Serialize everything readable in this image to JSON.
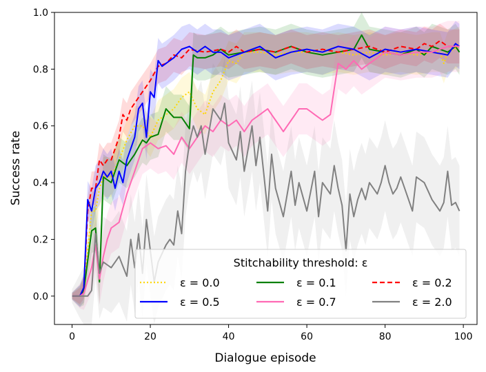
{
  "chart_data": {
    "type": "line",
    "title": "",
    "xlabel": "Dialogue episode",
    "ylabel": "Success rate",
    "xlim": [
      -4.5,
      103.5
    ],
    "ylim": [
      -0.1,
      1.0
    ],
    "xticks": [
      0,
      20,
      40,
      60,
      80,
      100
    ],
    "xtick_labels": [
      "0",
      "20",
      "40",
      "60",
      "80",
      "100"
    ],
    "yticks": [
      0.0,
      0.2,
      0.4,
      0.6,
      0.8,
      1.0
    ],
    "ytick_labels": [
      "0.0",
      "0.2",
      "0.4",
      "0.6",
      "0.8",
      "1.0"
    ],
    "legend_title": "Stitchability threshold: ε",
    "legend_position": "bottom-right",
    "series": [
      {
        "name": "ε = 0.0",
        "color": "#FFD700",
        "dash": "dotted",
        "knots": [
          [
            0,
            0
          ],
          [
            2,
            0
          ],
          [
            3,
            0.02
          ],
          [
            5,
            0.3
          ],
          [
            6,
            0.3
          ],
          [
            7,
            0.38
          ],
          [
            8,
            0.42
          ],
          [
            10,
            0.42
          ],
          [
            12,
            0.48
          ],
          [
            14,
            0.55
          ],
          [
            16,
            0.6
          ],
          [
            18,
            0.6
          ],
          [
            20,
            0.56
          ],
          [
            22,
            0.62
          ],
          [
            24,
            0.64
          ],
          [
            26,
            0.66
          ],
          [
            28,
            0.7
          ],
          [
            30,
            0.72
          ],
          [
            32,
            0.66
          ],
          [
            34,
            0.64
          ],
          [
            36,
            0.72
          ],
          [
            38,
            0.76
          ],
          [
            40,
            0.83
          ],
          [
            42,
            0.82
          ],
          [
            44,
            0.86
          ],
          [
            48,
            0.86
          ],
          [
            52,
            0.85
          ],
          [
            56,
            0.86
          ],
          [
            60,
            0.86
          ],
          [
            64,
            0.85
          ],
          [
            68,
            0.86
          ],
          [
            72,
            0.85
          ],
          [
            76,
            0.86
          ],
          [
            80,
            0.85
          ],
          [
            84,
            0.86
          ],
          [
            88,
            0.85
          ],
          [
            92,
            0.86
          ],
          [
            94,
            0.86
          ],
          [
            95,
            0.82
          ],
          [
            96,
            0.86
          ],
          [
            99,
            0.88
          ]
        ],
        "band": 0.07
      },
      {
        "name": "ε = 0.1",
        "color": "#008000",
        "dash": "solid",
        "knots": [
          [
            0,
            0
          ],
          [
            2,
            0
          ],
          [
            3,
            0.02
          ],
          [
            5,
            0.23
          ],
          [
            6,
            0.24
          ],
          [
            7,
            0.05
          ],
          [
            8,
            0.42
          ],
          [
            9,
            0.41
          ],
          [
            10,
            0.4
          ],
          [
            12,
            0.48
          ],
          [
            14,
            0.46
          ],
          [
            16,
            0.5
          ],
          [
            18,
            0.55
          ],
          [
            19,
            0.54
          ],
          [
            20,
            0.56
          ],
          [
            22,
            0.57
          ],
          [
            24,
            0.66
          ],
          [
            26,
            0.63
          ],
          [
            28,
            0.63
          ],
          [
            30,
            0.59
          ],
          [
            31,
            0.85
          ],
          [
            32,
            0.84
          ],
          [
            34,
            0.84
          ],
          [
            36,
            0.85
          ],
          [
            38,
            0.87
          ],
          [
            40,
            0.85
          ],
          [
            44,
            0.86
          ],
          [
            48,
            0.87
          ],
          [
            52,
            0.86
          ],
          [
            56,
            0.88
          ],
          [
            60,
            0.86
          ],
          [
            64,
            0.85
          ],
          [
            68,
            0.86
          ],
          [
            72,
            0.87
          ],
          [
            74,
            0.92
          ],
          [
            76,
            0.87
          ],
          [
            80,
            0.86
          ],
          [
            84,
            0.85
          ],
          [
            88,
            0.87
          ],
          [
            90,
            0.85
          ],
          [
            92,
            0.88
          ],
          [
            94,
            0.87
          ],
          [
            96,
            0.86
          ],
          [
            98,
            0.88
          ],
          [
            99,
            0.86
          ]
        ],
        "band": 0.08
      },
      {
        "name": "ε = 0.2",
        "color": "#FF0000",
        "dash": "dashed",
        "knots": [
          [
            0,
            0
          ],
          [
            2,
            0
          ],
          [
            3,
            0.03
          ],
          [
            4,
            0.3
          ],
          [
            5,
            0.38
          ],
          [
            6,
            0.38
          ],
          [
            7,
            0.48
          ],
          [
            8,
            0.46
          ],
          [
            9,
            0.48
          ],
          [
            10,
            0.48
          ],
          [
            12,
            0.56
          ],
          [
            13,
            0.64
          ],
          [
            14,
            0.62
          ],
          [
            15,
            0.66
          ],
          [
            16,
            0.68
          ],
          [
            18,
            0.72
          ],
          [
            20,
            0.76
          ],
          [
            22,
            0.81
          ],
          [
            24,
            0.82
          ],
          [
            26,
            0.85
          ],
          [
            28,
            0.84
          ],
          [
            30,
            0.87
          ],
          [
            34,
            0.86
          ],
          [
            38,
            0.87
          ],
          [
            40,
            0.86
          ],
          [
            42,
            0.88
          ],
          [
            44,
            0.86
          ],
          [
            48,
            0.87
          ],
          [
            52,
            0.86
          ],
          [
            56,
            0.88
          ],
          [
            60,
            0.86
          ],
          [
            64,
            0.87
          ],
          [
            68,
            0.86
          ],
          [
            72,
            0.87
          ],
          [
            76,
            0.88
          ],
          [
            80,
            0.86
          ],
          [
            84,
            0.88
          ],
          [
            88,
            0.87
          ],
          [
            90,
            0.89
          ],
          [
            92,
            0.88
          ],
          [
            94,
            0.9
          ],
          [
            96,
            0.88
          ],
          [
            99,
            0.88
          ]
        ],
        "band": 0.06
      },
      {
        "name": "ε = 0.5",
        "color": "#0000FF",
        "dash": "solid",
        "knots": [
          [
            0,
            0
          ],
          [
            2,
            0
          ],
          [
            3,
            0.03
          ],
          [
            4,
            0.34
          ],
          [
            5,
            0.3
          ],
          [
            6,
            0.38
          ],
          [
            7,
            0.4
          ],
          [
            8,
            0.44
          ],
          [
            9,
            0.42
          ],
          [
            10,
            0.44
          ],
          [
            11,
            0.38
          ],
          [
            12,
            0.44
          ],
          [
            13,
            0.4
          ],
          [
            14,
            0.48
          ],
          [
            16,
            0.56
          ],
          [
            17,
            0.66
          ],
          [
            18,
            0.68
          ],
          [
            19,
            0.56
          ],
          [
            20,
            0.72
          ],
          [
            21,
            0.7
          ],
          [
            22,
            0.83
          ],
          [
            23,
            0.81
          ],
          [
            24,
            0.82
          ],
          [
            26,
            0.84
          ],
          [
            28,
            0.87
          ],
          [
            30,
            0.88
          ],
          [
            32,
            0.86
          ],
          [
            34,
            0.88
          ],
          [
            36,
            0.86
          ],
          [
            38,
            0.86
          ],
          [
            40,
            0.84
          ],
          [
            44,
            0.86
          ],
          [
            48,
            0.88
          ],
          [
            52,
            0.84
          ],
          [
            56,
            0.86
          ],
          [
            60,
            0.87
          ],
          [
            64,
            0.86
          ],
          [
            68,
            0.88
          ],
          [
            72,
            0.87
          ],
          [
            76,
            0.84
          ],
          [
            80,
            0.87
          ],
          [
            84,
            0.86
          ],
          [
            88,
            0.87
          ],
          [
            92,
            0.86
          ],
          [
            96,
            0.85
          ],
          [
            98,
            0.89
          ],
          [
            99,
            0.88
          ]
        ],
        "band": 0.08
      },
      {
        "name": "ε = 0.7",
        "color": "#FF69B4",
        "dash": "solid",
        "knots": [
          [
            0,
            0
          ],
          [
            2,
            0
          ],
          [
            3,
            0.01
          ],
          [
            5,
            0.1
          ],
          [
            6,
            0.18
          ],
          [
            7,
            0.06
          ],
          [
            8,
            0.14
          ],
          [
            9,
            0.2
          ],
          [
            10,
            0.24
          ],
          [
            12,
            0.26
          ],
          [
            14,
            0.36
          ],
          [
            15,
            0.4
          ],
          [
            16,
            0.44
          ],
          [
            18,
            0.52
          ],
          [
            20,
            0.54
          ],
          [
            22,
            0.52
          ],
          [
            24,
            0.53
          ],
          [
            26,
            0.5
          ],
          [
            28,
            0.56
          ],
          [
            30,
            0.52
          ],
          [
            32,
            0.56
          ],
          [
            34,
            0.6
          ],
          [
            36,
            0.58
          ],
          [
            38,
            0.62
          ],
          [
            40,
            0.6
          ],
          [
            42,
            0.62
          ],
          [
            44,
            0.58
          ],
          [
            46,
            0.62
          ],
          [
            48,
            0.64
          ],
          [
            50,
            0.66
          ],
          [
            52,
            0.62
          ],
          [
            54,
            0.58
          ],
          [
            56,
            0.62
          ],
          [
            58,
            0.66
          ],
          [
            60,
            0.66
          ],
          [
            62,
            0.64
          ],
          [
            64,
            0.62
          ],
          [
            66,
            0.64
          ],
          [
            68,
            0.82
          ],
          [
            70,
            0.8
          ],
          [
            72,
            0.83
          ],
          [
            74,
            0.8
          ],
          [
            76,
            0.82
          ],
          [
            78,
            0.84
          ],
          [
            80,
            0.86
          ],
          [
            84,
            0.85
          ],
          [
            88,
            0.86
          ],
          [
            92,
            0.86
          ],
          [
            96,
            0.88
          ],
          [
            99,
            0.88
          ]
        ],
        "band": 0.09
      },
      {
        "name": "ε = 2.0",
        "color": "#808080",
        "dash": "solid",
        "knots": [
          [
            0,
            0
          ],
          [
            2,
            0
          ],
          [
            4,
            0.0
          ],
          [
            5,
            0.02
          ],
          [
            6,
            0.22
          ],
          [
            7,
            0.08
          ],
          [
            8,
            0.12
          ],
          [
            10,
            0.1
          ],
          [
            12,
            0.14
          ],
          [
            14,
            0.07
          ],
          [
            15,
            0.2
          ],
          [
            16,
            0.1
          ],
          [
            17,
            0.22
          ],
          [
            18,
            0.08
          ],
          [
            19,
            0.27
          ],
          [
            20,
            0.16
          ],
          [
            21,
            0.05
          ],
          [
            22,
            0.12
          ],
          [
            24,
            0.18
          ],
          [
            25,
            0.2
          ],
          [
            26,
            0.18
          ],
          [
            27,
            0.3
          ],
          [
            28,
            0.22
          ],
          [
            29,
            0.44
          ],
          [
            30,
            0.54
          ],
          [
            31,
            0.6
          ],
          [
            32,
            0.56
          ],
          [
            33,
            0.6
          ],
          [
            34,
            0.5
          ],
          [
            36,
            0.66
          ],
          [
            38,
            0.62
          ],
          [
            39,
            0.68
          ],
          [
            40,
            0.54
          ],
          [
            42,
            0.48
          ],
          [
            43,
            0.58
          ],
          [
            44,
            0.44
          ],
          [
            46,
            0.6
          ],
          [
            47,
            0.46
          ],
          [
            48,
            0.56
          ],
          [
            50,
            0.3
          ],
          [
            51,
            0.5
          ],
          [
            52,
            0.38
          ],
          [
            54,
            0.28
          ],
          [
            55,
            0.36
          ],
          [
            56,
            0.44
          ],
          [
            57,
            0.32
          ],
          [
            58,
            0.4
          ],
          [
            60,
            0.3
          ],
          [
            62,
            0.44
          ],
          [
            63,
            0.28
          ],
          [
            64,
            0.4
          ],
          [
            66,
            0.36
          ],
          [
            67,
            0.46
          ],
          [
            68,
            0.38
          ],
          [
            69,
            0.32
          ],
          [
            70,
            0.16
          ],
          [
            71,
            0.36
          ],
          [
            72,
            0.28
          ],
          [
            73,
            0.34
          ],
          [
            74,
            0.38
          ],
          [
            75,
            0.34
          ],
          [
            76,
            0.4
          ],
          [
            78,
            0.36
          ],
          [
            79,
            0.4
          ],
          [
            80,
            0.46
          ],
          [
            81,
            0.4
          ],
          [
            82,
            0.36
          ],
          [
            83,
            0.38
          ],
          [
            84,
            0.42
          ],
          [
            85,
            0.38
          ],
          [
            86,
            0.34
          ],
          [
            87,
            0.3
          ],
          [
            88,
            0.42
          ],
          [
            90,
            0.4
          ],
          [
            92,
            0.34
          ],
          [
            93,
            0.32
          ],
          [
            94,
            0.3
          ],
          [
            95,
            0.33
          ],
          [
            96,
            0.44
          ],
          [
            97,
            0.32
          ],
          [
            98,
            0.33
          ],
          [
            99,
            0.3
          ]
        ],
        "band": 0.16
      }
    ]
  }
}
